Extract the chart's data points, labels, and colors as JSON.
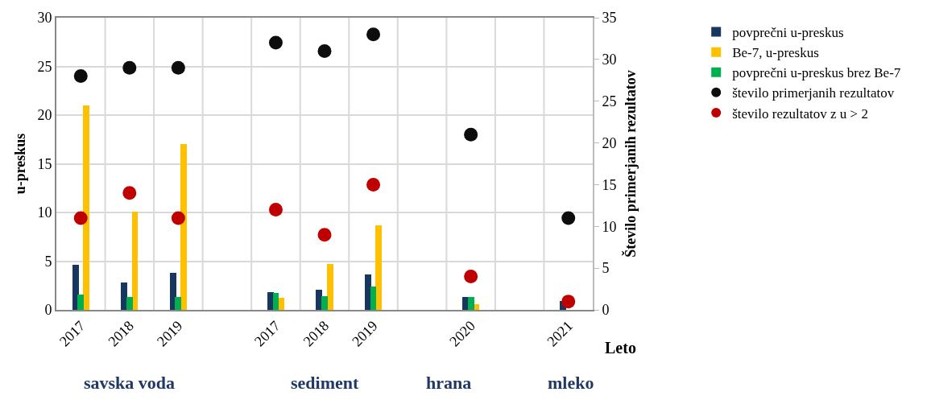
{
  "chart_data": {
    "type": "bar",
    "categories": [
      "2017",
      "2018",
      "2019",
      null,
      "2017",
      "2018",
      "2019",
      null,
      "2020",
      null,
      "2021"
    ],
    "series": [
      {
        "name": "povprečni u-preskus",
        "color": "#17375e",
        "values": [
          4.6,
          2.8,
          3.8,
          null,
          1.8,
          2.1,
          3.6,
          null,
          1.3,
          null,
          0.9
        ]
      },
      {
        "name": "Be-7, u-preskus",
        "color": "#ffc000",
        "values": [
          21,
          10.1,
          17,
          null,
          1.2,
          4.7,
          8.7,
          null,
          0.6,
          null,
          null
        ]
      },
      {
        "name": "povprečni u-preskus brez Be-7",
        "color": "#00b050",
        "values": [
          1.6,
          1.3,
          1.3,
          null,
          1.7,
          1.4,
          2.4,
          null,
          1.3,
          null,
          null
        ]
      },
      {
        "name": "število primerjanih rezultatov",
        "type": "scatter",
        "axis": "y2",
        "color": "#0d0d0d",
        "values": [
          28,
          29,
          29,
          null,
          32,
          31,
          33,
          null,
          21,
          null,
          11
        ]
      },
      {
        "name": "število rezultatov z u > 2",
        "type": "scatter",
        "axis": "y2",
        "color": "#c00000",
        "values": [
          11,
          14,
          11,
          null,
          12,
          9,
          15,
          null,
          4,
          null,
          1
        ]
      }
    ],
    "xlabel": "Leto",
    "ylabel": "u-preskus",
    "y2label": "Število primerjanih rezultatov",
    "ylim": [
      0,
      30
    ],
    "yticks": [
      0,
      5,
      10,
      15,
      20,
      25,
      30
    ],
    "y2lim": [
      0,
      35
    ],
    "y2ticks": [
      0,
      5,
      10,
      15,
      20,
      25,
      30,
      35
    ],
    "annotations": [
      "savska voda",
      "sediment",
      "hrana",
      "mleko"
    ],
    "grid": true,
    "legend": "right"
  }
}
